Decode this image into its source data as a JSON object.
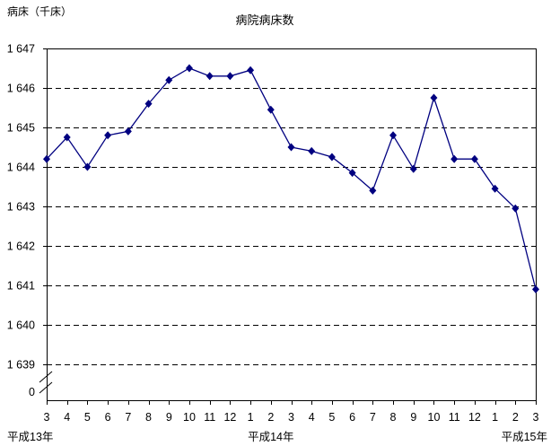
{
  "page": {
    "background": "#ffffff",
    "text_color": "#000000"
  },
  "chart_data": {
    "type": "line",
    "title": "病院病床数",
    "ylabel": "病床（千床）",
    "xlabel": "",
    "legend": "none",
    "grid": "horizontal-dashed",
    "axis_break_above_zero": true,
    "line_color": "#000080",
    "marker": "diamond",
    "ylim_display": [
      1639,
      1647
    ],
    "categories": [
      "3",
      "4",
      "5",
      "6",
      "7",
      "8",
      "9",
      "10",
      "11",
      "12",
      "1",
      "2",
      "3",
      "4",
      "5",
      "6",
      "7",
      "8",
      "9",
      "10",
      "11",
      "12",
      "1",
      "2",
      "3"
    ],
    "era_labels": [
      {
        "label": "平成13年",
        "align": "left"
      },
      {
        "label": "平成14年",
        "align": "center"
      },
      {
        "label": "平成15年",
        "align": "right"
      }
    ],
    "y_ticks": [
      {
        "label": "1 647",
        "value": 1647
      },
      {
        "label": "1 646",
        "value": 1646
      },
      {
        "label": "1 645",
        "value": 1645
      },
      {
        "label": "1 644",
        "value": 1644
      },
      {
        "label": "1 643",
        "value": 1643
      },
      {
        "label": "1 642",
        "value": 1642
      },
      {
        "label": "1 641",
        "value": 1641
      },
      {
        "label": "1 640",
        "value": 1640
      },
      {
        "label": "1 639",
        "value": 1639
      },
      {
        "label": "0",
        "value": null
      }
    ],
    "series": [
      {
        "name": "病院病床数",
        "values": [
          1644.2,
          1644.75,
          1644.0,
          1644.8,
          1644.9,
          1645.6,
          1646.2,
          1646.5,
          1646.3,
          1646.3,
          1646.45,
          1645.45,
          1644.5,
          1644.4,
          1644.25,
          1643.85,
          1643.4,
          1644.8,
          1643.95,
          1645.75,
          1644.2,
          1644.2,
          1643.45,
          1642.95,
          1640.9
        ]
      }
    ]
  }
}
